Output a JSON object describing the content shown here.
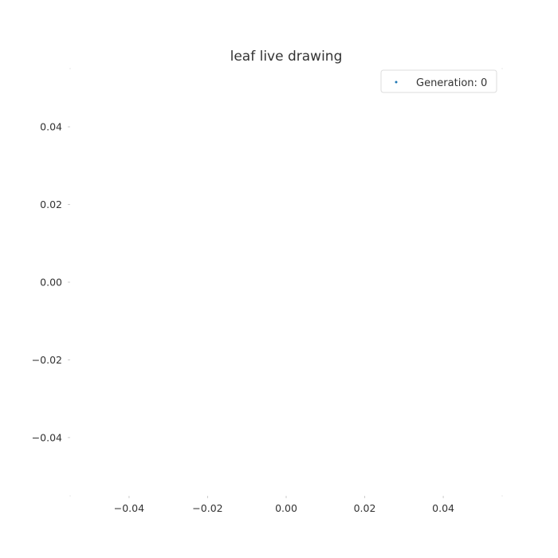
{
  "chart_data": {
    "type": "scatter",
    "title": "leaf live drawing",
    "xlabel": "",
    "ylabel": "",
    "xlim": [
      -0.055,
      0.055
    ],
    "ylim": [
      -0.055,
      0.055
    ],
    "x_ticks": [
      {
        "value": -0.04,
        "label": "−0.04"
      },
      {
        "value": -0.02,
        "label": "−0.02"
      },
      {
        "value": 0.0,
        "label": "0.00"
      },
      {
        "value": 0.02,
        "label": "0.02"
      },
      {
        "value": 0.04,
        "label": "0.04"
      }
    ],
    "y_ticks": [
      {
        "value": 0.04,
        "label": "0.04"
      },
      {
        "value": 0.02,
        "label": "0.02"
      },
      {
        "value": 0.0,
        "label": "0.00"
      },
      {
        "value": -0.02,
        "label": "−0.02"
      },
      {
        "value": -0.04,
        "label": "−0.04"
      }
    ],
    "grid": false,
    "legend_position": "top-right",
    "series": [
      {
        "name": "Generation: 0",
        "x": [],
        "y": [],
        "color": "#1f77b4"
      }
    ]
  }
}
